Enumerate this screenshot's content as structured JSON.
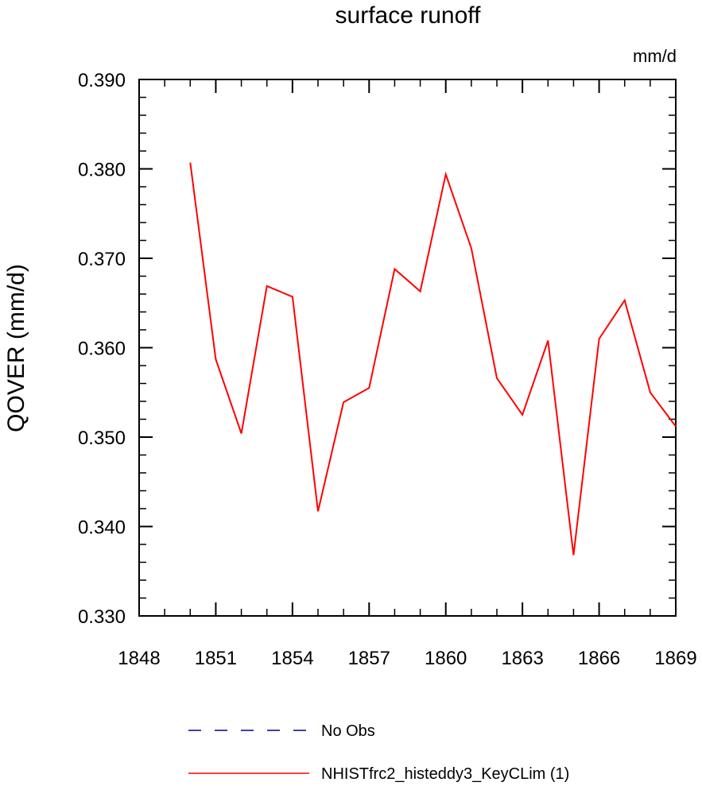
{
  "chart_data": {
    "type": "line",
    "title": "surface runoff",
    "units_label": "mm/d",
    "ylabel": "QOVER  (mm/d)",
    "xlabel": "",
    "xlim": [
      1848,
      1869
    ],
    "ylim": [
      0.33,
      0.39
    ],
    "x_ticks": [
      "1848",
      "1851",
      "1854",
      "1857",
      "1860",
      "1863",
      "1866",
      "1869"
    ],
    "y_ticks": [
      "0.330",
      "0.340",
      "0.350",
      "0.360",
      "0.370",
      "0.380",
      "0.390"
    ],
    "series": [
      {
        "name": "NHISTfrc2_histeddy3_KeyCLim (1)",
        "color": "#ff0000",
        "style": "solid",
        "x": [
          1850,
          1851,
          1852,
          1853,
          1854,
          1855,
          1856,
          1857,
          1858,
          1859,
          1860,
          1861,
          1862,
          1863,
          1864,
          1865,
          1866,
          1867,
          1868,
          1869
        ],
        "values": [
          0.3807,
          0.3587,
          0.3504,
          0.3669,
          0.3657,
          0.3417,
          0.3539,
          0.3555,
          0.3688,
          0.3663,
          0.3794,
          0.3711,
          0.3566,
          0.3525,
          0.3608,
          0.3368,
          0.361,
          0.3653,
          0.355,
          0.3512
        ]
      }
    ],
    "legend": {
      "placement": "bottom",
      "entries": [
        {
          "label": "No Obs",
          "color": "#00008b",
          "style": "dashed"
        },
        {
          "label": "NHISTfrc2_histeddy3_KeyCLim (1)",
          "color": "#ff0000",
          "style": "solid"
        }
      ]
    },
    "grid": false
  }
}
